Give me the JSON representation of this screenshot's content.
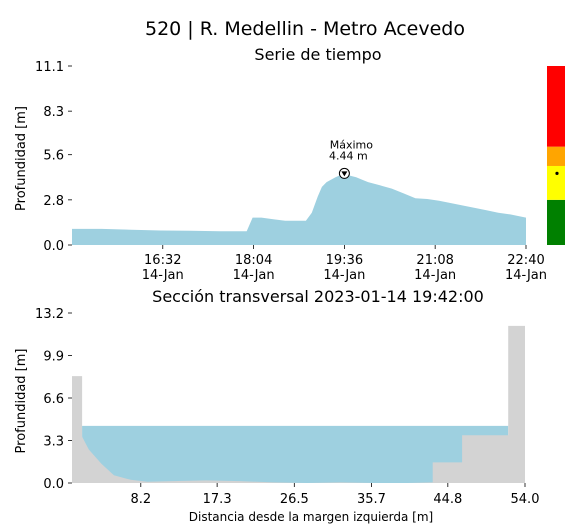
{
  "header": {
    "title": "520 | R. Medellin - Metro Acevedo",
    "subtitle": "Serie de tiempo"
  },
  "chart_data": [
    {
      "type": "area",
      "title": "Serie de tiempo",
      "ylabel": "Profundidad [m]",
      "xlabel": "",
      "x_ticks": [
        {
          "time": "16:32",
          "date": "14-Jan",
          "hour": 16.533
        },
        {
          "time": "18:04",
          "date": "14-Jan",
          "hour": 18.067
        },
        {
          "time": "19:36",
          "date": "14-Jan",
          "hour": 19.6
        },
        {
          "time": "21:08",
          "date": "14-Jan",
          "hour": 21.133
        },
        {
          "time": "22:40",
          "date": "14-Jan",
          "hour": 22.667
        }
      ],
      "xlim_hours": [
        15.0,
        22.667
      ],
      "ylim": [
        0.0,
        11.1
      ],
      "y_ticks": [
        "0.0",
        "2.8",
        "5.6",
        "8.3",
        "11.1"
      ],
      "color": "#9ed0e0",
      "series": [
        {
          "hours": [
            15.0,
            15.5,
            16.0,
            16.5,
            17.0,
            17.5,
            17.95,
            18.05,
            18.2,
            18.4,
            18.6,
            18.8,
            18.95,
            19.05,
            19.15,
            19.22,
            19.3,
            19.45,
            19.6,
            19.7,
            19.8,
            19.9,
            20.0,
            20.2,
            20.4,
            20.6,
            20.8,
            21.0,
            21.2,
            21.4,
            21.6,
            21.8,
            22.0,
            22.2,
            22.4,
            22.667
          ],
          "values": [
            1.0,
            1.0,
            0.95,
            0.9,
            0.88,
            0.85,
            0.85,
            1.7,
            1.7,
            1.6,
            1.5,
            1.5,
            1.5,
            2.0,
            3.0,
            3.6,
            3.9,
            4.2,
            4.44,
            4.3,
            4.2,
            4.05,
            3.9,
            3.7,
            3.5,
            3.2,
            2.9,
            2.85,
            2.75,
            2.6,
            2.45,
            2.3,
            2.15,
            2.0,
            1.9,
            1.7
          ]
        }
      ],
      "annotation": {
        "label": "Máximo",
        "value_text": "4.44 m",
        "hour": 19.6,
        "value": 4.44
      },
      "alert_bar": {
        "levels": [
          {
            "from": 0.0,
            "to": 2.8,
            "color": "#008000"
          },
          {
            "from": 2.8,
            "to": 4.9,
            "color": "#ffff00"
          },
          {
            "from": 4.9,
            "to": 6.1,
            "color": "#ffa500"
          },
          {
            "from": 6.1,
            "to": 11.1,
            "color": "#ff0000"
          }
        ],
        "marker_value": 4.44
      }
    },
    {
      "type": "area",
      "title": "Sección transversal 2023-01-14 19:42:00",
      "xlabel": "Distancia desde la margen izquierda [m]",
      "ylabel": "Profundidad [m]",
      "xlim": [
        0.0,
        54.0
      ],
      "ylim": [
        0.0,
        13.2
      ],
      "x_ticks": [
        "8.2",
        "17.3",
        "26.5",
        "35.7",
        "44.8",
        "54.0"
      ],
      "y_ticks": [
        "0.0",
        "3.3",
        "6.6",
        "9.9",
        "13.2"
      ],
      "water_level": 4.44,
      "water_color": "#9ed0e0",
      "bank_color": "#d3d3d3",
      "bed_profile": {
        "x": [
          0,
          1.2,
          1.2,
          2,
          3.5,
          5,
          7,
          9,
          12,
          16,
          20,
          24,
          28,
          32,
          36,
          40,
          43,
          43,
          46.5,
          46.5,
          51,
          51,
          52,
          52,
          54
        ],
        "y": [
          8.3,
          8.3,
          3.6,
          2.6,
          1.5,
          0.6,
          0.25,
          0.1,
          0.15,
          0.2,
          0.15,
          0.05,
          0.0,
          0.05,
          0.0,
          0.0,
          0.05,
          1.6,
          1.6,
          3.7,
          3.7,
          3.7,
          3.7,
          12.2,
          12.2
        ]
      }
    }
  ]
}
